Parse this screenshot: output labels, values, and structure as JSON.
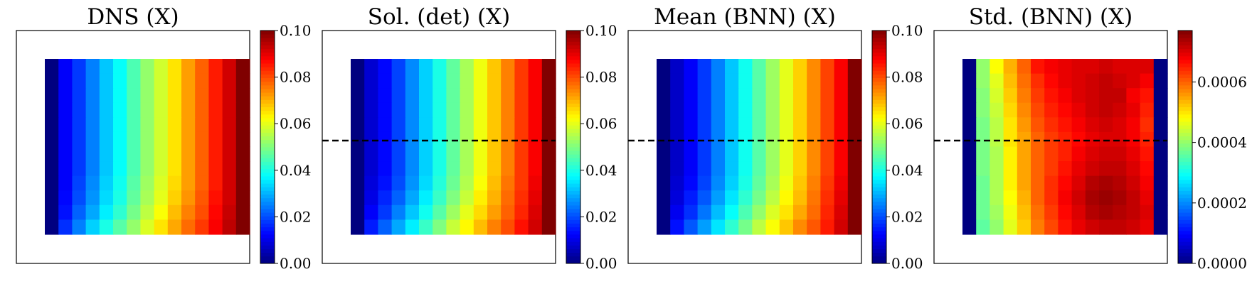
{
  "chart_data": [
    {
      "type": "heatmap",
      "title": "DNS (X)",
      "colormap": "jet",
      "clim": [
        0,
        0.1
      ],
      "colorbar_ticks": [
        0,
        0.02,
        0.04,
        0.06,
        0.08,
        0.1
      ],
      "colorbar_tick_labels": [
        "0.00",
        "0.02",
        "0.04",
        "0.06",
        "0.08",
        "0.10"
      ],
      "dashed_line": false,
      "grid": false,
      "values": [
        [
          0.0,
          0.012,
          0.018,
          0.025,
          0.032,
          0.038,
          0.045,
          0.052,
          0.058,
          0.065,
          0.072,
          0.078,
          0.085,
          0.092,
          0.1
        ],
        [
          0.0,
          0.012,
          0.018,
          0.025,
          0.032,
          0.038,
          0.045,
          0.052,
          0.058,
          0.065,
          0.072,
          0.078,
          0.085,
          0.092,
          0.1
        ],
        [
          0.0,
          0.012,
          0.018,
          0.025,
          0.032,
          0.038,
          0.045,
          0.052,
          0.058,
          0.065,
          0.072,
          0.078,
          0.085,
          0.092,
          0.1
        ],
        [
          0.0,
          0.012,
          0.018,
          0.025,
          0.032,
          0.038,
          0.045,
          0.052,
          0.058,
          0.065,
          0.072,
          0.078,
          0.085,
          0.092,
          0.1
        ],
        [
          0.0,
          0.012,
          0.018,
          0.025,
          0.032,
          0.038,
          0.045,
          0.052,
          0.058,
          0.065,
          0.072,
          0.078,
          0.085,
          0.092,
          0.1
        ],
        [
          0.0,
          0.012,
          0.018,
          0.025,
          0.032,
          0.038,
          0.045,
          0.052,
          0.058,
          0.065,
          0.072,
          0.078,
          0.085,
          0.092,
          0.1
        ],
        [
          0.0,
          0.012,
          0.018,
          0.025,
          0.032,
          0.038,
          0.045,
          0.052,
          0.058,
          0.065,
          0.072,
          0.078,
          0.085,
          0.092,
          0.1
        ],
        [
          0.0,
          0.012,
          0.018,
          0.025,
          0.032,
          0.038,
          0.045,
          0.052,
          0.058,
          0.065,
          0.072,
          0.078,
          0.085,
          0.092,
          0.1
        ],
        [
          0.0,
          0.012,
          0.019,
          0.026,
          0.033,
          0.039,
          0.046,
          0.053,
          0.059,
          0.066,
          0.072,
          0.078,
          0.085,
          0.092,
          0.1
        ],
        [
          0.0,
          0.013,
          0.02,
          0.027,
          0.034,
          0.04,
          0.047,
          0.054,
          0.06,
          0.067,
          0.073,
          0.079,
          0.086,
          0.092,
          0.1
        ],
        [
          0.0,
          0.014,
          0.022,
          0.029,
          0.036,
          0.042,
          0.049,
          0.056,
          0.062,
          0.069,
          0.075,
          0.08,
          0.087,
          0.093,
          0.1
        ],
        [
          0.0,
          0.017,
          0.025,
          0.033,
          0.04,
          0.046,
          0.052,
          0.059,
          0.065,
          0.071,
          0.077,
          0.082,
          0.088,
          0.094,
          0.1
        ]
      ]
    },
    {
      "type": "heatmap",
      "title": "Sol. (det) (X)",
      "colormap": "jet",
      "clim": [
        0,
        0.1
      ],
      "colorbar_ticks": [
        0,
        0.02,
        0.04,
        0.06,
        0.08,
        0.1
      ],
      "colorbar_tick_labels": [
        "0.00",
        "0.02",
        "0.04",
        "0.06",
        "0.08",
        "0.10"
      ],
      "dashed_line": true,
      "grid": false,
      "values": [
        [
          0.0,
          0.008,
          0.013,
          0.019,
          0.026,
          0.033,
          0.04,
          0.047,
          0.054,
          0.061,
          0.068,
          0.075,
          0.082,
          0.088,
          0.1
        ],
        [
          0.0,
          0.008,
          0.013,
          0.019,
          0.026,
          0.033,
          0.04,
          0.047,
          0.054,
          0.061,
          0.068,
          0.075,
          0.082,
          0.088,
          0.1
        ],
        [
          0.0,
          0.008,
          0.013,
          0.019,
          0.026,
          0.033,
          0.04,
          0.047,
          0.054,
          0.061,
          0.068,
          0.075,
          0.082,
          0.088,
          0.1
        ],
        [
          0.0,
          0.008,
          0.013,
          0.019,
          0.026,
          0.033,
          0.04,
          0.047,
          0.054,
          0.061,
          0.068,
          0.075,
          0.082,
          0.088,
          0.1
        ],
        [
          0.0,
          0.008,
          0.013,
          0.019,
          0.026,
          0.033,
          0.04,
          0.047,
          0.054,
          0.061,
          0.068,
          0.075,
          0.082,
          0.088,
          0.1
        ],
        [
          0.0,
          0.008,
          0.013,
          0.019,
          0.026,
          0.033,
          0.04,
          0.047,
          0.054,
          0.061,
          0.068,
          0.075,
          0.082,
          0.088,
          0.1
        ],
        [
          0.0,
          0.008,
          0.013,
          0.019,
          0.026,
          0.033,
          0.04,
          0.047,
          0.054,
          0.061,
          0.068,
          0.075,
          0.082,
          0.088,
          0.1
        ],
        [
          0.0,
          0.008,
          0.013,
          0.019,
          0.026,
          0.033,
          0.04,
          0.047,
          0.054,
          0.061,
          0.068,
          0.075,
          0.082,
          0.088,
          0.1
        ],
        [
          0.0,
          0.009,
          0.014,
          0.02,
          0.027,
          0.034,
          0.041,
          0.048,
          0.055,
          0.062,
          0.069,
          0.076,
          0.082,
          0.089,
          0.1
        ],
        [
          0.0,
          0.01,
          0.016,
          0.022,
          0.029,
          0.036,
          0.043,
          0.05,
          0.057,
          0.064,
          0.07,
          0.077,
          0.083,
          0.09,
          0.1
        ],
        [
          0.0,
          0.012,
          0.018,
          0.025,
          0.032,
          0.039,
          0.046,
          0.053,
          0.06,
          0.066,
          0.072,
          0.078,
          0.084,
          0.091,
          0.1
        ],
        [
          0.0,
          0.015,
          0.022,
          0.029,
          0.036,
          0.043,
          0.05,
          0.057,
          0.063,
          0.069,
          0.075,
          0.08,
          0.086,
          0.092,
          0.1
        ]
      ]
    },
    {
      "type": "heatmap",
      "title": "Mean (BNN) (X)",
      "colormap": "jet",
      "clim": [
        0,
        0.1
      ],
      "colorbar_ticks": [
        0,
        0.02,
        0.04,
        0.06,
        0.08,
        0.1
      ],
      "colorbar_tick_labels": [
        "0.00",
        "0.02",
        "0.04",
        "0.06",
        "0.08",
        "0.10"
      ],
      "dashed_line": true,
      "grid": false,
      "values": [
        [
          0.0,
          0.007,
          0.012,
          0.018,
          0.025,
          0.032,
          0.039,
          0.046,
          0.053,
          0.06,
          0.067,
          0.074,
          0.081,
          0.088,
          0.1
        ],
        [
          0.0,
          0.007,
          0.012,
          0.018,
          0.025,
          0.032,
          0.039,
          0.046,
          0.053,
          0.06,
          0.067,
          0.074,
          0.081,
          0.088,
          0.1
        ],
        [
          0.0,
          0.007,
          0.012,
          0.018,
          0.025,
          0.032,
          0.039,
          0.046,
          0.053,
          0.06,
          0.067,
          0.074,
          0.081,
          0.088,
          0.1
        ],
        [
          0.0,
          0.007,
          0.012,
          0.018,
          0.025,
          0.032,
          0.039,
          0.046,
          0.053,
          0.06,
          0.067,
          0.074,
          0.081,
          0.088,
          0.1
        ],
        [
          0.0,
          0.007,
          0.012,
          0.018,
          0.025,
          0.032,
          0.039,
          0.046,
          0.053,
          0.06,
          0.067,
          0.074,
          0.081,
          0.088,
          0.1
        ],
        [
          0.0,
          0.007,
          0.012,
          0.018,
          0.025,
          0.032,
          0.039,
          0.046,
          0.053,
          0.06,
          0.067,
          0.074,
          0.081,
          0.088,
          0.1
        ],
        [
          0.0,
          0.007,
          0.012,
          0.018,
          0.025,
          0.032,
          0.039,
          0.046,
          0.053,
          0.06,
          0.067,
          0.074,
          0.081,
          0.088,
          0.1
        ],
        [
          0.0,
          0.007,
          0.012,
          0.018,
          0.025,
          0.032,
          0.039,
          0.046,
          0.053,
          0.06,
          0.067,
          0.074,
          0.081,
          0.088,
          0.1
        ],
        [
          0.0,
          0.008,
          0.013,
          0.019,
          0.026,
          0.033,
          0.04,
          0.047,
          0.054,
          0.061,
          0.068,
          0.075,
          0.082,
          0.089,
          0.1
        ],
        [
          0.0,
          0.009,
          0.015,
          0.021,
          0.028,
          0.035,
          0.042,
          0.049,
          0.056,
          0.063,
          0.069,
          0.076,
          0.083,
          0.09,
          0.1
        ],
        [
          0.0,
          0.011,
          0.017,
          0.024,
          0.031,
          0.038,
          0.045,
          0.052,
          0.059,
          0.065,
          0.071,
          0.077,
          0.084,
          0.091,
          0.1
        ],
        [
          0.0,
          0.014,
          0.021,
          0.028,
          0.035,
          0.042,
          0.049,
          0.056,
          0.062,
          0.068,
          0.074,
          0.079,
          0.085,
          0.092,
          0.1
        ]
      ]
    },
    {
      "type": "heatmap",
      "title": "Std. (BNN) (X)",
      "colormap": "jet",
      "clim": [
        0,
        0.00077
      ],
      "colorbar_ticks": [
        0,
        0.0002,
        0.0004,
        0.0006
      ],
      "colorbar_tick_labels": [
        "0.0000",
        "0.0002",
        "0.0004",
        "0.0006"
      ],
      "dashed_line": true,
      "grid": false,
      "values": [
        [
          0.0,
          0.0004,
          0.00048,
          0.00054,
          0.0006,
          0.00066,
          0.00068,
          0.00069,
          0.0007,
          0.0007,
          0.00071,
          0.0007,
          0.0007,
          0.0007,
          0.0
        ],
        [
          0.0,
          0.0004,
          0.00046,
          0.00053,
          0.00059,
          0.00064,
          0.00067,
          0.00069,
          0.0007,
          0.00071,
          0.00072,
          0.00071,
          0.0007,
          0.00068,
          0.0
        ],
        [
          0.0,
          0.00039,
          0.00045,
          0.00052,
          0.00058,
          0.00063,
          0.00066,
          0.00068,
          0.0007,
          0.00071,
          0.00072,
          0.00072,
          0.00068,
          0.00066,
          0.0
        ],
        [
          0.0,
          0.00039,
          0.00044,
          0.00051,
          0.00057,
          0.00062,
          0.00065,
          0.00067,
          0.00069,
          0.00071,
          0.00072,
          0.00071,
          0.00069,
          0.00065,
          0.0
        ],
        [
          0.0,
          0.00038,
          0.00043,
          0.0005,
          0.00056,
          0.00061,
          0.00064,
          0.00066,
          0.00068,
          0.0007,
          0.00071,
          0.0007,
          0.00068,
          0.00064,
          0.0
        ],
        [
          0.0,
          0.00038,
          0.00043,
          0.0005,
          0.00055,
          0.0006,
          0.00063,
          0.00065,
          0.00067,
          0.00069,
          0.0007,
          0.0007,
          0.00068,
          0.00065,
          0.0
        ],
        [
          0.0,
          0.00038,
          0.00042,
          0.00049,
          0.00055,
          0.0006,
          0.00063,
          0.00065,
          0.00068,
          0.0007,
          0.00071,
          0.00071,
          0.00069,
          0.00066,
          0.0
        ],
        [
          0.0,
          0.00038,
          0.00042,
          0.00049,
          0.00055,
          0.0006,
          0.00063,
          0.00066,
          0.00069,
          0.00071,
          0.00072,
          0.00072,
          0.0007,
          0.00067,
          0.0
        ],
        [
          0.0,
          0.00037,
          0.00042,
          0.00049,
          0.00055,
          0.0006,
          0.00064,
          0.00067,
          0.0007,
          0.00073,
          0.00074,
          0.00073,
          0.00071,
          0.00068,
          0.0
        ],
        [
          0.0,
          0.00037,
          0.00042,
          0.00048,
          0.00054,
          0.0006,
          0.00064,
          0.00068,
          0.00071,
          0.00074,
          0.00075,
          0.00074,
          0.00072,
          0.00069,
          0.0
        ],
        [
          0.0,
          0.00037,
          0.00041,
          0.00047,
          0.00053,
          0.00059,
          0.00063,
          0.00067,
          0.0007,
          0.00073,
          0.00074,
          0.00073,
          0.00072,
          0.0007,
          0.0
        ],
        [
          0.0,
          0.00036,
          0.0004,
          0.00046,
          0.00052,
          0.00058,
          0.00062,
          0.00066,
          0.00069,
          0.00071,
          0.00072,
          0.00072,
          0.00071,
          0.00069,
          0.0
        ]
      ]
    }
  ]
}
